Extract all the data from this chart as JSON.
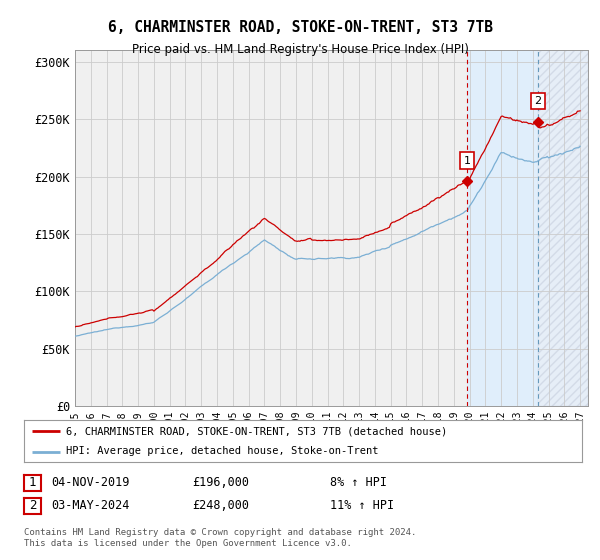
{
  "title": "6, CHARMINSTER ROAD, STOKE-ON-TRENT, ST3 7TB",
  "subtitle": "Price paid vs. HM Land Registry's House Price Index (HPI)",
  "ylabel_ticks": [
    "£0",
    "£50K",
    "£100K",
    "£150K",
    "£200K",
    "£250K",
    "£300K"
  ],
  "ytick_values": [
    0,
    50000,
    100000,
    150000,
    200000,
    250000,
    300000
  ],
  "ylim": [
    0,
    310000
  ],
  "xlim_start": 1995.0,
  "xlim_end": 2027.5,
  "line1_color": "#cc0000",
  "line2_color": "#7bafd4",
  "shade_color": "#ddeeff",
  "grid_color": "#cccccc",
  "bg_color": "#ffffff",
  "plot_bg_color": "#f0f0f0",
  "point1_x": 2019.84,
  "point1_y": 196000,
  "point2_x": 2024.34,
  "point2_y": 248000,
  "vline1_color": "#cc0000",
  "vline2_color": "#6699bb",
  "shade1_start": 2019.84,
  "shade1_end": 2024.34,
  "hatch_start": 2024.34,
  "hatch_end": 2027.5,
  "legend_line1": "6, CHARMINSTER ROAD, STOKE-ON-TRENT, ST3 7TB (detached house)",
  "legend_line2": "HPI: Average price, detached house, Stoke-on-Trent",
  "table_row1": [
    "1",
    "04-NOV-2019",
    "£196,000",
    "8% ↑ HPI"
  ],
  "table_row2": [
    "2",
    "03-MAY-2024",
    "£248,000",
    "11% ↑ HPI"
  ],
  "footnote": "Contains HM Land Registry data © Crown copyright and database right 2024.\nThis data is licensed under the Open Government Licence v3.0.",
  "xtick_years": [
    1995,
    1996,
    1997,
    1998,
    1999,
    2000,
    2001,
    2002,
    2003,
    2004,
    2005,
    2006,
    2007,
    2008,
    2009,
    2010,
    2011,
    2012,
    2013,
    2014,
    2015,
    2016,
    2017,
    2018,
    2019,
    2020,
    2021,
    2022,
    2023,
    2024,
    2025,
    2026,
    2027
  ]
}
